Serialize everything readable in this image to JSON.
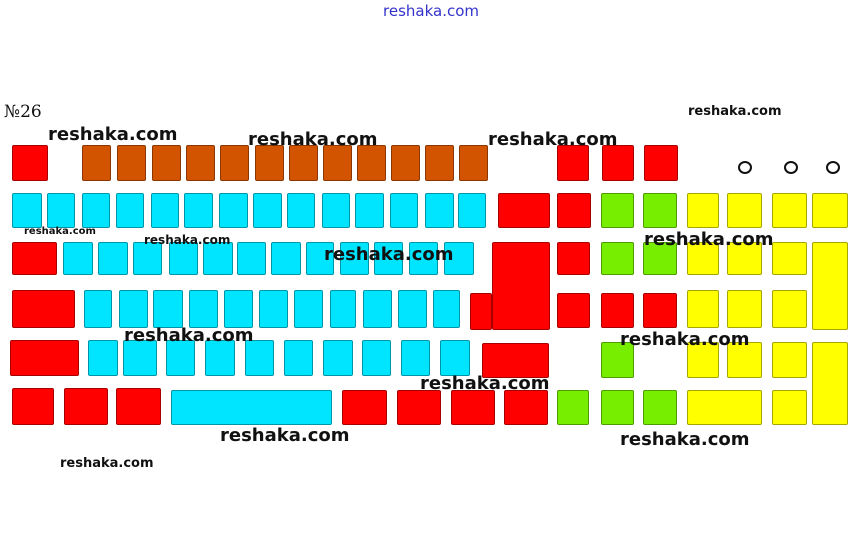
{
  "header": {
    "site_link": "reshaka.com",
    "task_number": "№26"
  },
  "watermark_text": "reshaka.com",
  "colors": {
    "red": "#ff0000",
    "orange": "#d35400",
    "cyan": "#00e5ff",
    "green": "#77ee00",
    "yellow": "#ffff00"
  }
}
